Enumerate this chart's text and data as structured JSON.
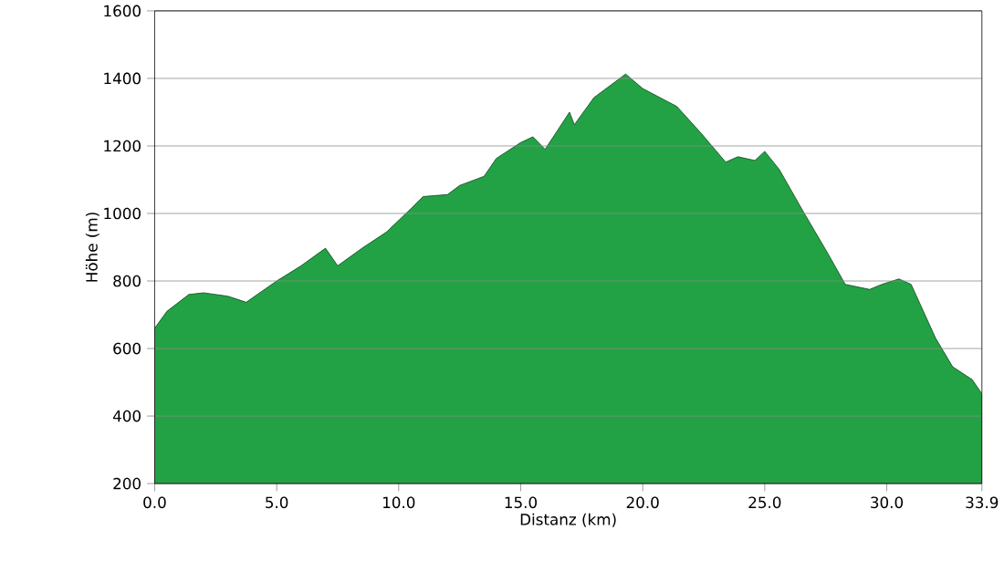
{
  "chart_data": {
    "type": "area",
    "xlabel": "Distanz   (km)",
    "ylabel": "Höhe (m)",
    "x": [
      0,
      0.5,
      1.4,
      2,
      3,
      3.75,
      5,
      6,
      7,
      7.5,
      8.5,
      9.5,
      10.5,
      11,
      12,
      12.5,
      13.5,
      14,
      15,
      15.5,
      16,
      17,
      17.2,
      18,
      19.3,
      20,
      21.4,
      22.4,
      23.4,
      23.9,
      24.6,
      25,
      25.6,
      26.6,
      27.6,
      28.3,
      29.3,
      29.8,
      30.5,
      31,
      32,
      32.7,
      33.5,
      33.9
    ],
    "series": [
      {
        "color": "#22a244",
        "values": [
          660,
          710,
          760,
          765,
          755,
          737,
          800,
          845,
          897,
          845,
          897,
          945,
          1014,
          1050,
          1056,
          1083,
          1110,
          1163,
          1210,
          1227,
          1190,
          1300,
          1263,
          1343,
          1413,
          1370,
          1317,
          1237,
          1152,
          1168,
          1157,
          1184,
          1130,
          1003,
          880,
          790,
          775,
          790,
          806,
          790,
          631,
          546,
          508,
          466
        ]
      }
    ],
    "xlim": [
      0,
      33.9
    ],
    "ylim": [
      200,
      1600
    ],
    "xticks": [
      {
        "value": 0,
        "label": "0.0"
      },
      {
        "value": 5,
        "label": "5.0"
      },
      {
        "value": 10,
        "label": "10.0"
      },
      {
        "value": 15,
        "label": "15.0"
      },
      {
        "value": 20,
        "label": "20.0"
      },
      {
        "value": 25,
        "label": "25.0"
      },
      {
        "value": 30,
        "label": "30.0"
      },
      {
        "value": 33.9,
        "label": "33.9"
      }
    ],
    "yticks": [
      200,
      400,
      600,
      800,
      1000,
      1200,
      1400,
      1600
    ],
    "grid": "y",
    "marker": "none",
    "line_style": "solid"
  }
}
